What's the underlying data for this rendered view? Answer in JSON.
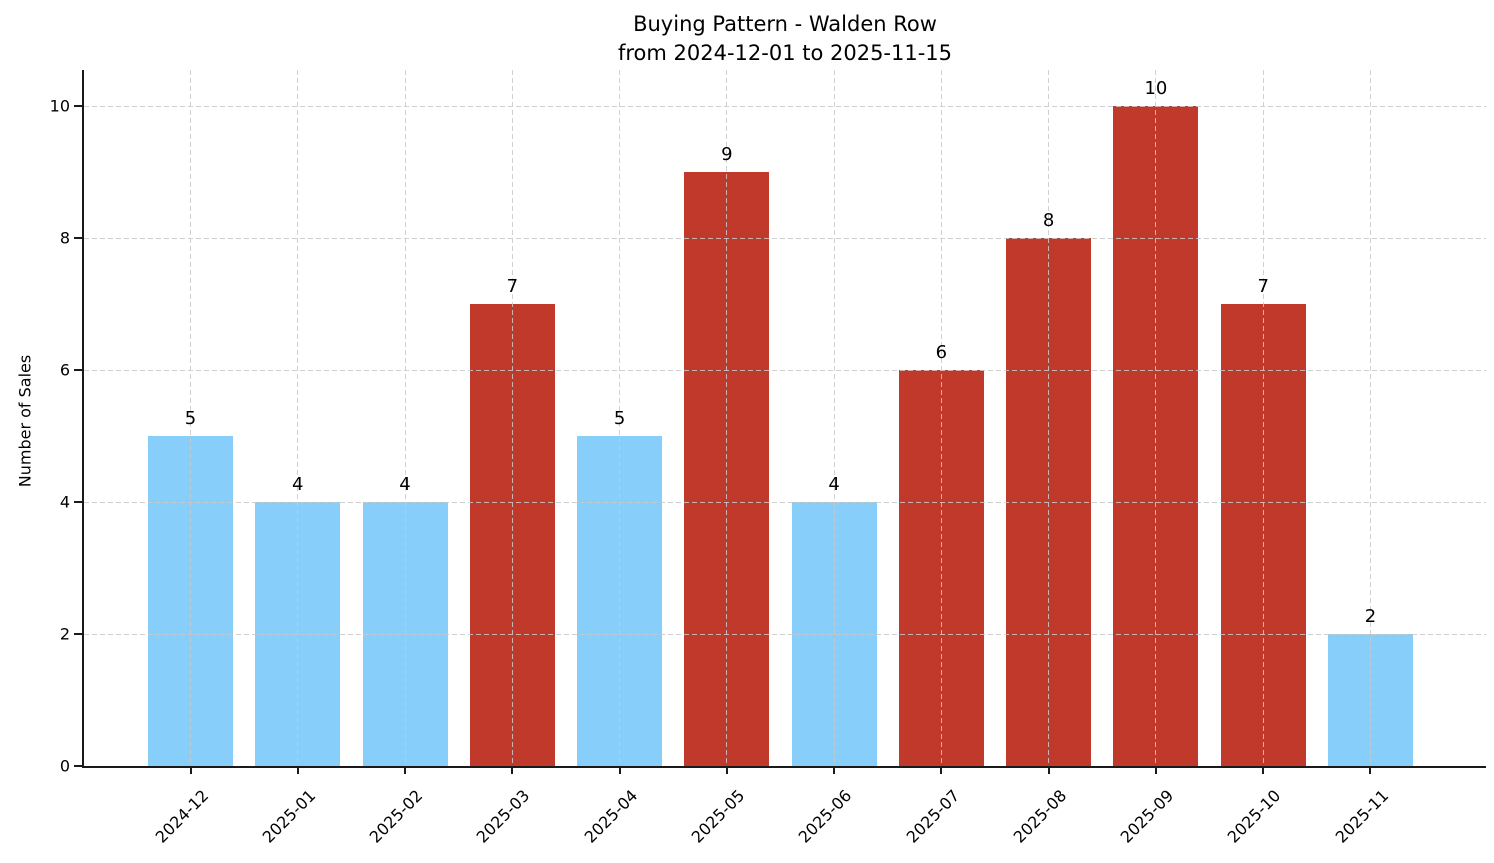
{
  "chart_data": {
    "type": "bar",
    "title": "Buying Pattern - Walden Row",
    "subtitle": "from 2024-12-01 to 2025-11-15",
    "xlabel": "",
    "ylabel": "Number of Sales",
    "categories": [
      "2024-12",
      "2025-01",
      "2025-02",
      "2025-03",
      "2025-04",
      "2025-05",
      "2025-06",
      "2025-07",
      "2025-08",
      "2025-09",
      "2025-10",
      "2025-11"
    ],
    "values": [
      5,
      4,
      4,
      7,
      5,
      9,
      4,
      6,
      8,
      10,
      7,
      2
    ],
    "bar_colors": [
      "#87CEFA",
      "#87CEFA",
      "#87CEFA",
      "#C0392B",
      "#87CEFA",
      "#C0392B",
      "#87CEFA",
      "#C0392B",
      "#C0392B",
      "#C0392B",
      "#C0392B",
      "#87CEFA"
    ],
    "palette": {
      "low": "#87CEFA",
      "high": "#C0392B"
    },
    "value_labels_shown": true,
    "yticks": [
      0,
      2,
      4,
      6,
      8,
      10
    ],
    "ylim": [
      0,
      10.55
    ],
    "xticklabel_rotation_deg": 45,
    "grid": {
      "style": "dashed",
      "color": "#c9c9c9",
      "axes": "both",
      "drawn_above_bars": true
    },
    "legend": "none",
    "axis_color": "#1a1a1a",
    "text_color": "#000000",
    "background_color": "#ffffff"
  }
}
